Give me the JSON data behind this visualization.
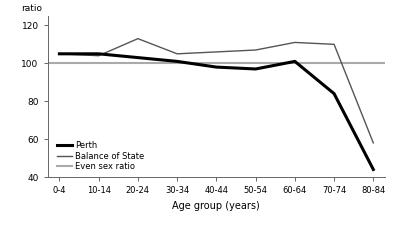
{
  "age_groups": [
    "0-4",
    "10-14",
    "20-24",
    "30-34",
    "40-44",
    "50-54",
    "60-64",
    "70-74",
    "80-84"
  ],
  "perth": [
    105,
    105,
    103,
    101,
    98,
    97,
    101,
    84,
    44
  ],
  "balance_of_state": [
    105,
    104,
    113,
    105,
    106,
    107,
    111,
    110,
    58
  ],
  "even_sex_ratio": 100,
  "ratio_label": "ratio",
  "xlabel": "Age group (years)",
  "ylim": [
    40,
    125
  ],
  "yticks": [
    40,
    60,
    80,
    100,
    120
  ],
  "perth_color": "#000000",
  "balance_color": "#555555",
  "even_color": "#aaaaaa",
  "perth_lw": 2.2,
  "balance_lw": 1.0,
  "even_lw": 1.5,
  "legend_labels": [
    "Perth",
    "Balance of State",
    "Even sex ratio"
  ],
  "bg_color": "#ffffff"
}
